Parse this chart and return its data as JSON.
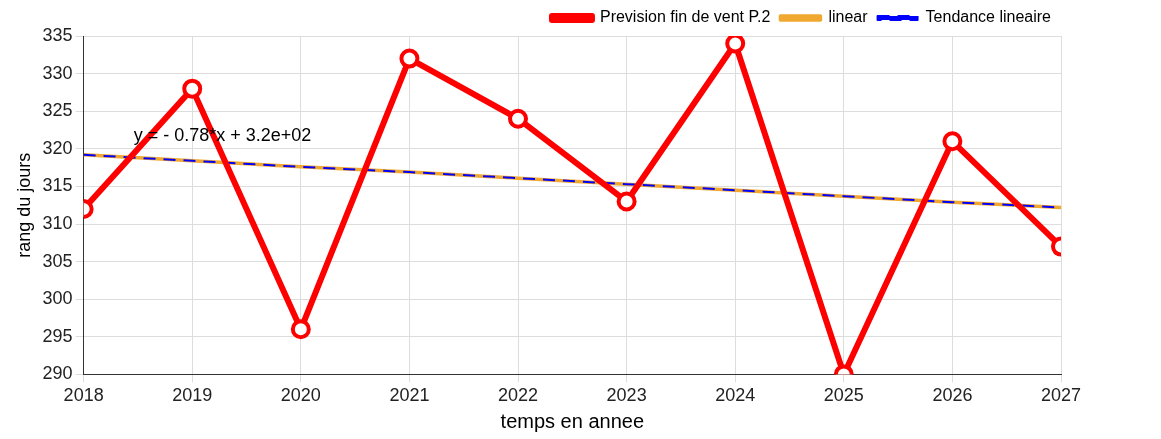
{
  "chart_data": {
    "type": "line",
    "xlabel": "temps en annee",
    "ylabel": "rang du jours",
    "x": [
      2018,
      2019,
      2020,
      2021,
      2022,
      2023,
      2024,
      2025,
      2026,
      2027
    ],
    "series": [
      {
        "name": "Prevision fin de vent P.2",
        "color": "#ff0000",
        "marker": "circle",
        "values": [
          312,
          328,
          296,
          332,
          324,
          313,
          334,
          290,
          321,
          307
        ]
      },
      {
        "name": "linear",
        "color": "#f0a830",
        "marker": "none",
        "values": [
          319.2,
          318.4,
          317.6,
          316.9,
          316.1,
          315.3,
          314.5,
          313.7,
          312.9,
          312.2
        ]
      },
      {
        "name": "Tendance lineaire",
        "color": "#0000ff",
        "marker": "none",
        "line_style": "dashed",
        "values": [
          319.2,
          318.4,
          317.6,
          316.9,
          316.1,
          315.3,
          314.5,
          313.7,
          312.9,
          312.2
        ]
      }
    ],
    "xlim": [
      2018,
      2027
    ],
    "xticks": [
      2018,
      2019,
      2020,
      2021,
      2022,
      2023,
      2024,
      2025,
      2026,
      2027
    ],
    "ylim": [
      290,
      335
    ],
    "yticks": [
      290,
      295,
      300,
      305,
      310,
      315,
      320,
      325,
      330,
      335
    ],
    "grid": true,
    "legend": "top right",
    "annotations": [
      "y = - 0.78*x + 3.2e+02"
    ]
  }
}
